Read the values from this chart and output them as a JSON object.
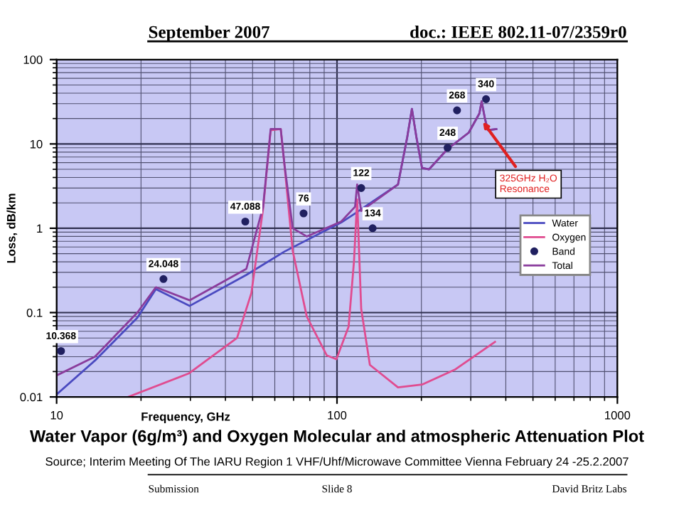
{
  "chart_data": {
    "type": "line",
    "title": "Water Vapor (6g/m³) and Oxygen Molecular and atmospheric Attenuation Plot",
    "xlabel": "Frequency, GHz",
    "ylabel": "Loss, dB/km",
    "log": "xy",
    "grid": true,
    "legend": "right",
    "xlim": [
      10,
      1000
    ],
    "xticks": [
      10,
      100,
      1000
    ],
    "ylim": [
      0.01,
      100
    ],
    "yticks": [
      0.01,
      0.1,
      1,
      10,
      100
    ],
    "series": [
      {
        "name": "Water",
        "color": "#4a4ac0",
        "x": [
          10,
          13.7,
          19.4,
          22.6,
          29.8,
          47.5,
          65,
          103.5,
          116,
          165,
          178,
          185,
          192,
          201,
          213,
          248,
          295,
          322,
          328,
          337,
          345,
          370
        ],
        "values": [
          0.0107,
          0.027,
          0.087,
          0.19,
          0.12,
          0.28,
          0.53,
          1.17,
          1.5,
          3.3,
          12,
          26,
          12,
          5.2,
          5,
          8.7,
          13.6,
          23,
          32,
          20,
          14.6,
          15
        ]
      },
      {
        "name": "Oxygen",
        "color": "#e04c90",
        "x": [
          18,
          29.6,
          44,
          49.5,
          54.5,
          58,
          63,
          65,
          69.5,
          78,
          92,
          99.5,
          110,
          115,
          118,
          122,
          131,
          165,
          201,
          263,
          366
        ],
        "values": [
          0.01,
          0.019,
          0.05,
          0.17,
          1.7,
          14.5,
          15,
          5.5,
          0.54,
          0.09,
          0.031,
          0.028,
          0.068,
          0.41,
          2.2,
          0.11,
          0.024,
          0.013,
          0.014,
          0.021,
          0.045
        ]
      },
      {
        "name": "Band",
        "type": "scatter",
        "marker": "circle",
        "color": "#202060",
        "x": [
          10.368,
          24.048,
          47.088,
          76,
          122,
          134,
          248,
          268,
          340
        ],
        "values": [
          0.035,
          0.25,
          1.2,
          1.5,
          3.0,
          1.0,
          9,
          25,
          34
        ]
      },
      {
        "name": "Total",
        "color": "#8a3c9c",
        "x": [
          10,
          13.7,
          19.4,
          22.6,
          29.8,
          47.5,
          54.5,
          58,
          63,
          65,
          69.5,
          78,
          103.5,
          116,
          118,
          122,
          165,
          178,
          185,
          192,
          201,
          213,
          248,
          295,
          322,
          328,
          337,
          345,
          370
        ],
        "values": [
          0.018,
          0.03,
          0.1,
          0.2,
          0.14,
          0.33,
          1.8,
          15,
          15,
          5.6,
          1.0,
          0.8,
          1.2,
          1.8,
          3.3,
          1.6,
          3.3,
          12,
          26,
          12,
          5.2,
          5,
          8.7,
          13.6,
          23,
          32,
          20,
          14.6,
          15
        ]
      }
    ],
    "annotations": [
      {
        "text": "325GHz H₂O\nResonance",
        "x": 325,
        "y": 20
      },
      {
        "text": "10.368",
        "x": 10.368,
        "y": 0.035
      },
      {
        "text": "24.048",
        "x": 24.048,
        "y": 0.25
      },
      {
        "text": "47.088",
        "x": 47.088,
        "y": 1.2
      },
      {
        "text": "76",
        "x": 76,
        "y": 1.5
      },
      {
        "text": "122",
        "x": 122,
        "y": 3.0
      },
      {
        "text": "134",
        "x": 134,
        "y": 1.0
      },
      {
        "text": "248",
        "x": 248,
        "y": 9
      },
      {
        "text": "268",
        "x": 268,
        "y": 25
      },
      {
        "text": "340",
        "x": 340,
        "y": 34
      },
      "September 2007",
      "doc.: IEEE 802.11-07/2359r0",
      "Source; Interim Meeting Of The IARU Region 1 VHF/Uhf/Microwave Committee Vienna February 24 -25.2.2007",
      "Submission",
      "Slide 8",
      "David Britz Labs"
    ]
  }
}
